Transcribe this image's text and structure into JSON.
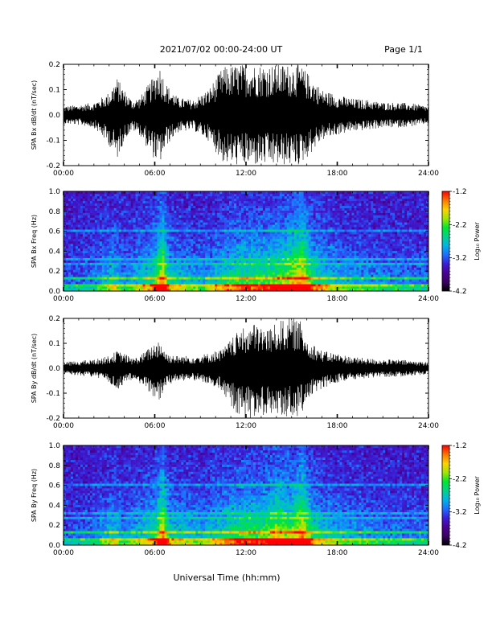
{
  "header": {
    "title": "2021/07/02  00:00-24:00 UT",
    "page_label": "Page 1/1"
  },
  "xaxis_label": "Universal Time (hh:mm)",
  "colors": {
    "trace": "#000000",
    "colormap": [
      "#000000",
      "#3b0064",
      "#4b0096",
      "#3a1fd8",
      "#1f6fff",
      "#00b4e6",
      "#00d28c",
      "#00e632",
      "#a0e600",
      "#ffd200",
      "#ff7800",
      "#ff0000"
    ]
  },
  "chart_data": [
    {
      "type": "line",
      "name": "panel-bx-timeseries",
      "ylabel": "SPA Bx dB/dt (nT/sec)",
      "xlim": [
        0,
        24
      ],
      "ylim": [
        -0.2,
        0.2
      ],
      "xticks": [
        "00:00",
        "06:00",
        "12:00",
        "18:00",
        "24:00"
      ],
      "yticks": [
        "-0.2",
        "-0.1",
        "0.0",
        "0.1",
        "0.2"
      ],
      "envelope": {
        "hour": [
          0,
          1,
          2,
          3,
          3.5,
          4,
          4.5,
          5,
          5.8,
          6.3,
          6.8,
          7.5,
          8.5,
          9.5,
          10.5,
          11.5,
          12.5,
          13.5,
          14.5,
          15,
          15.5,
          16,
          17,
          18,
          19,
          20,
          21,
          22,
          23,
          24
        ],
        "upper": [
          0.035,
          0.04,
          0.05,
          0.09,
          0.15,
          0.1,
          0.06,
          0.07,
          0.14,
          0.2,
          0.12,
          0.07,
          0.06,
          0.1,
          0.19,
          0.2,
          0.2,
          0.2,
          0.2,
          0.2,
          0.2,
          0.17,
          0.1,
          0.08,
          0.065,
          0.06,
          0.05,
          0.05,
          0.045,
          0.035
        ],
        "lower": [
          -0.035,
          -0.04,
          -0.05,
          -0.12,
          -0.18,
          -0.1,
          -0.06,
          -0.08,
          -0.16,
          -0.2,
          -0.12,
          -0.07,
          -0.06,
          -0.1,
          -0.19,
          -0.2,
          -0.2,
          -0.2,
          -0.2,
          -0.2,
          -0.2,
          -0.17,
          -0.1,
          -0.08,
          -0.065,
          -0.06,
          -0.05,
          -0.05,
          -0.045,
          -0.035
        ]
      }
    },
    {
      "type": "heatmap",
      "name": "panel-bx-spectrogram",
      "ylabel": "SPA Bx Freq (Hz)",
      "xlim": [
        0,
        24
      ],
      "ylim": [
        0.0,
        1.0
      ],
      "xticks": [
        "00:00",
        "06:00",
        "12:00",
        "18:00",
        "24:00"
      ],
      "yticks": [
        "0.0",
        "0.2",
        "0.4",
        "0.6",
        "0.8",
        "1.0"
      ],
      "colorbar": {
        "label": "Log₁₀ Power",
        "range": [
          -4.2,
          -1.2
        ],
        "ticks": [
          "-1.2",
          "-2.2",
          "-3.2",
          "-4.2"
        ]
      },
      "activity": {
        "hour": [
          0,
          2,
          3.3,
          4,
          6,
          6.5,
          7,
          9,
          10.5,
          12,
          13,
          14,
          15,
          15.7,
          16.5,
          18,
          21,
          24
        ],
        "level": [
          0.15,
          0.2,
          0.45,
          0.25,
          0.55,
          0.95,
          0.45,
          0.3,
          0.5,
          0.6,
          0.6,
          0.65,
          0.8,
          0.95,
          0.55,
          0.35,
          0.25,
          0.2
        ]
      }
    },
    {
      "type": "line",
      "name": "panel-by-timeseries",
      "ylabel": "SPA By dB/dt (nT/sec)",
      "xlim": [
        0,
        24
      ],
      "ylim": [
        -0.2,
        0.2
      ],
      "xticks": [
        "00:00",
        "06:00",
        "12:00",
        "18:00",
        "24:00"
      ],
      "yticks": [
        "-0.2",
        "-0.1",
        "0.0",
        "0.1",
        "0.2"
      ],
      "envelope": {
        "hour": [
          0,
          1,
          2,
          3,
          3.5,
          4,
          4.5,
          5,
          5.8,
          6.3,
          6.8,
          7.5,
          8.5,
          9.5,
          10.5,
          11.5,
          12.5,
          13.5,
          14.5,
          15,
          15.5,
          16,
          17,
          18,
          19,
          20,
          21,
          22,
          23,
          24
        ],
        "upper": [
          0.025,
          0.03,
          0.035,
          0.05,
          0.07,
          0.06,
          0.04,
          0.05,
          0.09,
          0.12,
          0.06,
          0.05,
          0.05,
          0.06,
          0.08,
          0.15,
          0.18,
          0.16,
          0.2,
          0.2,
          0.2,
          0.12,
          0.07,
          0.06,
          0.045,
          0.04,
          0.035,
          0.035,
          0.03,
          0.025
        ],
        "lower": [
          -0.025,
          -0.03,
          -0.035,
          -0.06,
          -0.09,
          -0.06,
          -0.05,
          -0.06,
          -0.11,
          -0.13,
          -0.07,
          -0.05,
          -0.05,
          -0.06,
          -0.1,
          -0.2,
          -0.2,
          -0.18,
          -0.2,
          -0.2,
          -0.2,
          -0.14,
          -0.08,
          -0.06,
          -0.045,
          -0.04,
          -0.035,
          -0.035,
          -0.03,
          -0.025
        ]
      }
    },
    {
      "type": "heatmap",
      "name": "panel-by-spectrogram",
      "ylabel": "SPA By Freq (Hz)",
      "xlim": [
        0,
        24
      ],
      "ylim": [
        0.0,
        1.0
      ],
      "xticks": [
        "00:00",
        "06:00",
        "12:00",
        "18:00",
        "24:00"
      ],
      "yticks": [
        "0.0",
        "0.2",
        "0.4",
        "0.6",
        "0.8",
        "1.0"
      ],
      "colorbar": {
        "label": "Log₁₀ Power",
        "range": [
          -4.2,
          -1.2
        ],
        "ticks": [
          "-1.2",
          "-2.2",
          "-3.2",
          "-4.2"
        ]
      },
      "activity": {
        "hour": [
          0,
          2,
          3.3,
          4,
          6,
          6.5,
          7,
          9,
          10.5,
          12,
          13,
          14,
          15,
          15.7,
          16.5,
          18,
          21,
          24
        ],
        "level": [
          0.15,
          0.2,
          0.45,
          0.25,
          0.5,
          0.95,
          0.45,
          0.35,
          0.5,
          0.65,
          0.6,
          0.8,
          0.7,
          0.95,
          0.5,
          0.35,
          0.25,
          0.2
        ]
      }
    }
  ]
}
